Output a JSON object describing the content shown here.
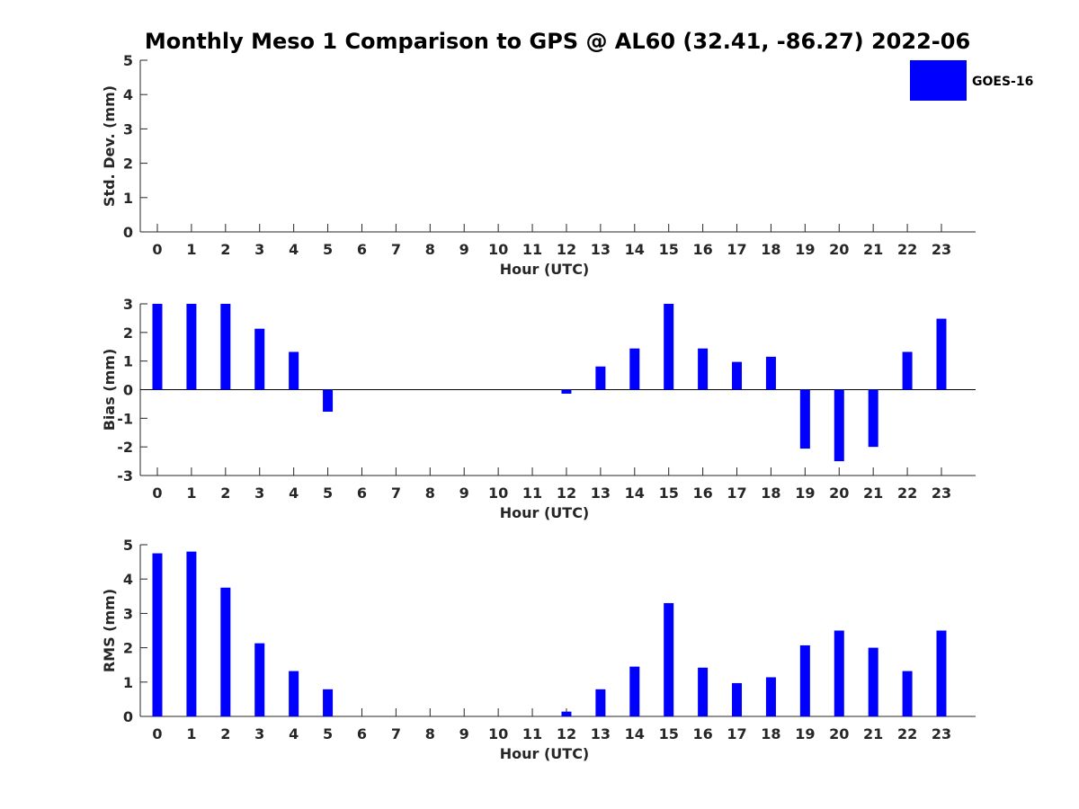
{
  "title": "Monthly Meso 1 Comparison to GPS @ AL60 (32.41, -86.27) 2022-06",
  "legend": {
    "label": "GOES-16",
    "color": "#0000ff"
  },
  "chart_data": [
    {
      "type": "bar",
      "panel": "std",
      "xlabel": "Hour (UTC)",
      "ylabel": "Std. Dev. (mm)",
      "ylim": [
        0,
        5
      ],
      "yticks": [
        0,
        1,
        2,
        3,
        4,
        5
      ],
      "categories": [
        "0",
        "1",
        "2",
        "3",
        "4",
        "5",
        "6",
        "7",
        "8",
        "9",
        "10",
        "11",
        "12",
        "13",
        "14",
        "15",
        "16",
        "17",
        "18",
        "19",
        "20",
        "21",
        "22",
        "23"
      ],
      "series": [
        {
          "name": "GOES-16",
          "color": "#0000ff",
          "values": [
            null,
            null,
            null,
            null,
            null,
            null,
            null,
            null,
            null,
            null,
            null,
            null,
            null,
            null,
            null,
            null,
            null,
            null,
            null,
            null,
            null,
            null,
            null,
            null
          ]
        }
      ],
      "zero_line": false,
      "legend": "top-right"
    },
    {
      "type": "bar",
      "panel": "bias",
      "xlabel": "Hour (UTC)",
      "ylabel": "Bias (mm)",
      "ylim": [
        -3,
        3
      ],
      "yticks": [
        -3,
        -2,
        -1,
        0,
        1,
        2,
        3
      ],
      "categories": [
        "0",
        "1",
        "2",
        "3",
        "4",
        "5",
        "6",
        "7",
        "8",
        "9",
        "10",
        "11",
        "12",
        "13",
        "14",
        "15",
        "16",
        "17",
        "18",
        "19",
        "20",
        "21",
        "22",
        "23"
      ],
      "series": [
        {
          "name": "GOES-16",
          "color": "#0000ff",
          "values": [
            3.0,
            3.0,
            3.0,
            2.13,
            1.32,
            -0.77,
            null,
            null,
            null,
            null,
            null,
            null,
            -0.14,
            0.81,
            1.44,
            3.0,
            1.44,
            0.97,
            1.15,
            -2.06,
            -2.5,
            -2.0,
            1.32,
            2.48
          ]
        }
      ],
      "zero_line": true
    },
    {
      "type": "bar",
      "panel": "rms",
      "xlabel": "Hour (UTC)",
      "ylabel": "RMS (mm)",
      "ylim": [
        0,
        5
      ],
      "yticks": [
        0,
        1,
        2,
        3,
        4,
        5
      ],
      "categories": [
        "0",
        "1",
        "2",
        "3",
        "4",
        "5",
        "6",
        "7",
        "8",
        "9",
        "10",
        "11",
        "12",
        "13",
        "14",
        "15",
        "16",
        "17",
        "18",
        "19",
        "20",
        "21",
        "22",
        "23"
      ],
      "series": [
        {
          "name": "GOES-16",
          "color": "#0000ff",
          "values": [
            4.75,
            4.8,
            3.75,
            2.13,
            1.32,
            0.79,
            null,
            null,
            null,
            null,
            null,
            null,
            0.14,
            0.79,
            1.45,
            3.3,
            1.42,
            0.97,
            1.14,
            2.07,
            2.5,
            2.0,
            1.32,
            2.5
          ]
        }
      ],
      "zero_line": false
    }
  ]
}
